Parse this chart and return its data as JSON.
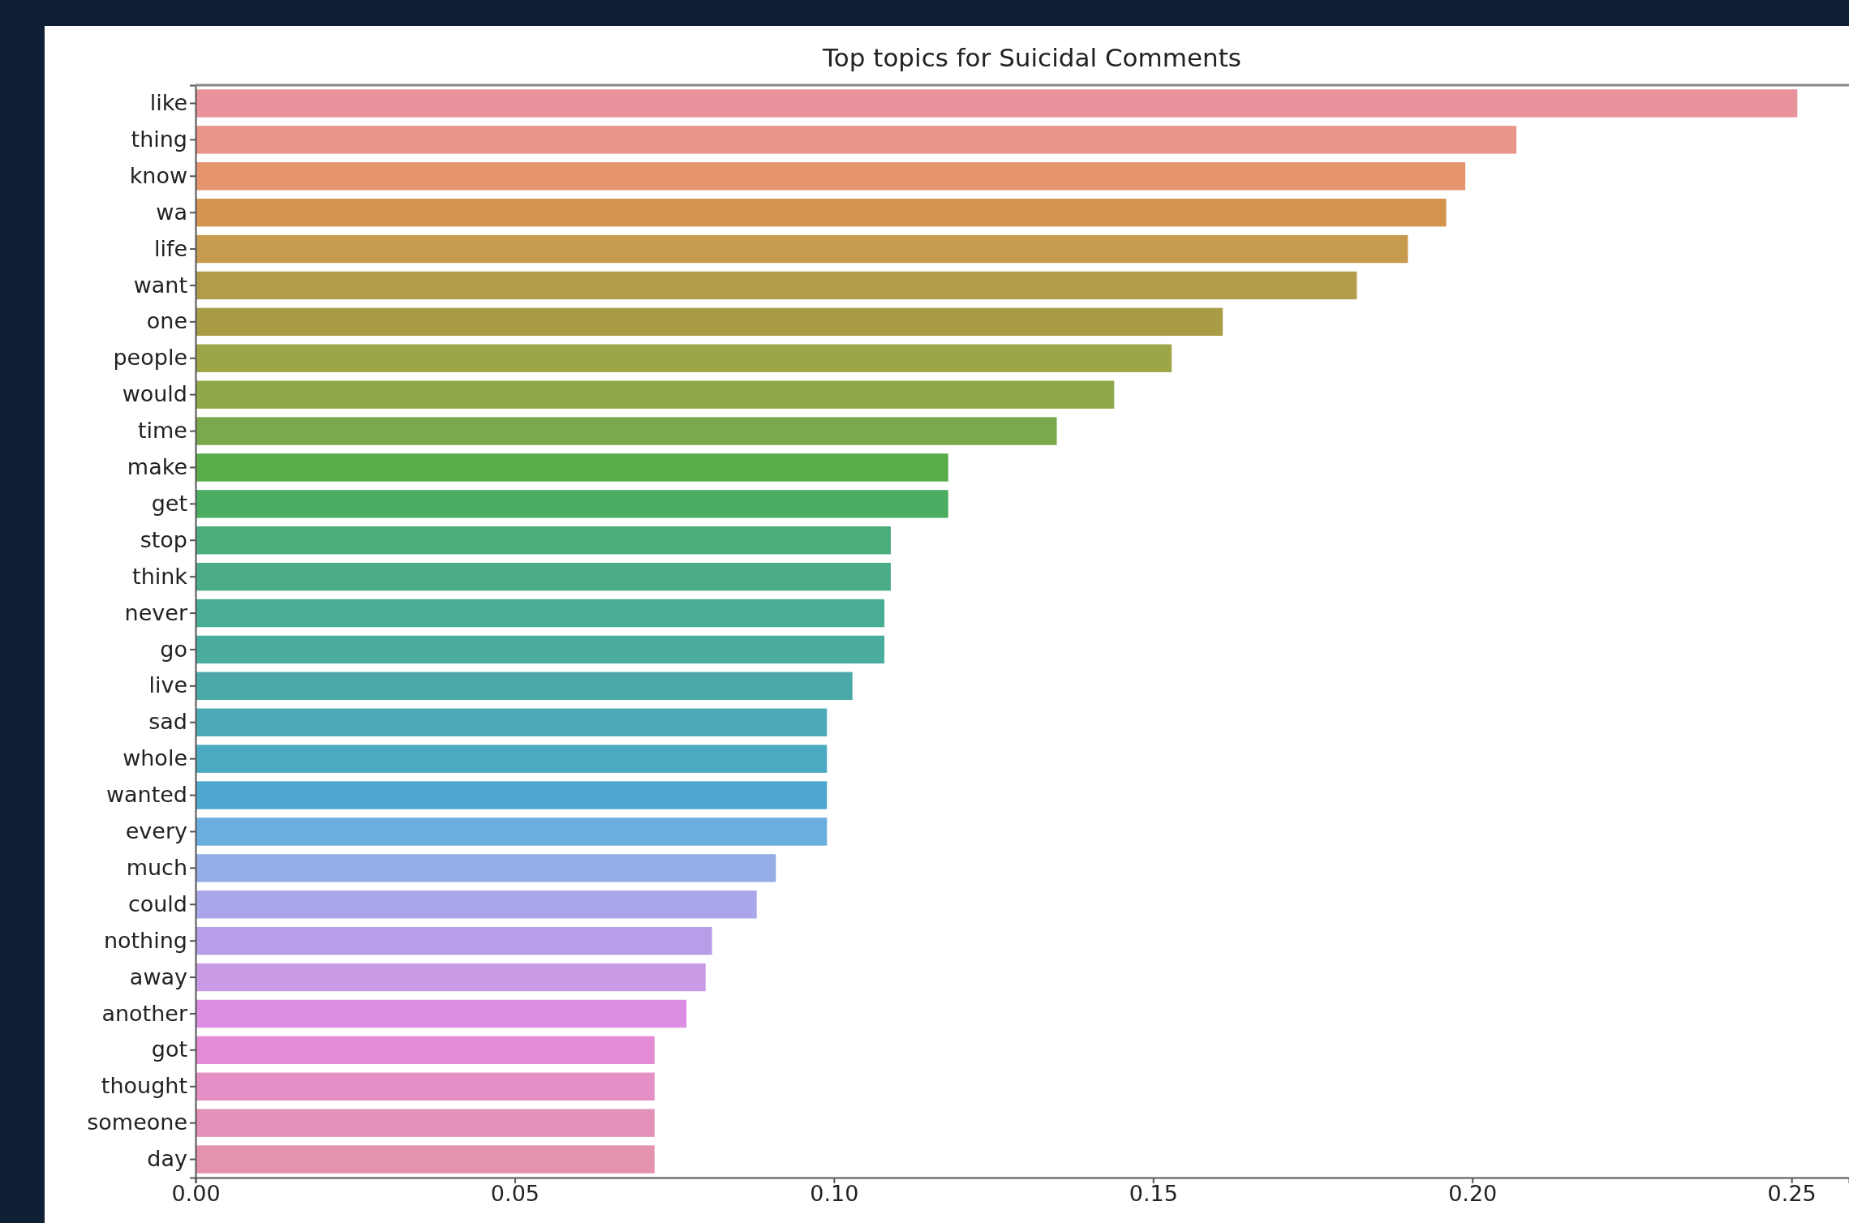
{
  "chart_data": {
    "type": "bar",
    "orientation": "horizontal",
    "title": "Top topics for Suicidal Comments",
    "categories": [
      "like",
      "thing",
      "know",
      "wa",
      "life",
      "want",
      "one",
      "people",
      "would",
      "time",
      "make",
      "get",
      "stop",
      "think",
      "never",
      "go",
      "live",
      "sad",
      "whole",
      "wanted",
      "every",
      "much",
      "could",
      "nothing",
      "away",
      "another",
      "got",
      "thought",
      "someone",
      "day"
    ],
    "values": [
      0.251,
      0.207,
      0.199,
      0.196,
      0.19,
      0.182,
      0.161,
      0.153,
      0.144,
      0.135,
      0.118,
      0.118,
      0.109,
      0.109,
      0.108,
      0.108,
      0.103,
      0.099,
      0.099,
      0.099,
      0.099,
      0.091,
      0.088,
      0.081,
      0.08,
      0.077,
      0.072,
      0.072,
      0.072,
      0.072
    ],
    "colors": [
      "#e8939b",
      "#e8968a",
      "#e6956e",
      "#d4944e",
      "#c79b4e",
      "#b39b4c",
      "#a89d46",
      "#9da646",
      "#8ea84b",
      "#7aa84c",
      "#5aad4a",
      "#4cad62",
      "#4aad7c",
      "#4aad88",
      "#48ad92",
      "#4aac9c",
      "#4baaa8",
      "#4caab6",
      "#4cabc3",
      "#4ea7cf",
      "#6aaedf",
      "#95aee8",
      "#a9a6ec",
      "#b79ee8",
      "#c99be6",
      "#dc8ee4",
      "#e58ad4",
      "#e48fc5",
      "#e491b9",
      "#e592ad"
    ],
    "xlim": [
      0,
      0.259
    ],
    "xticks": [
      {
        "value": 0,
        "label": "0.00"
      },
      {
        "value": 0.05,
        "label": "0.05"
      },
      {
        "value": 0.1,
        "label": "0.10"
      },
      {
        "value": 0.15,
        "label": "0.15"
      },
      {
        "value": 0.2,
        "label": "0.20"
      },
      {
        "value": 0.25,
        "label": "0.25"
      }
    ],
    "grid": false
  }
}
